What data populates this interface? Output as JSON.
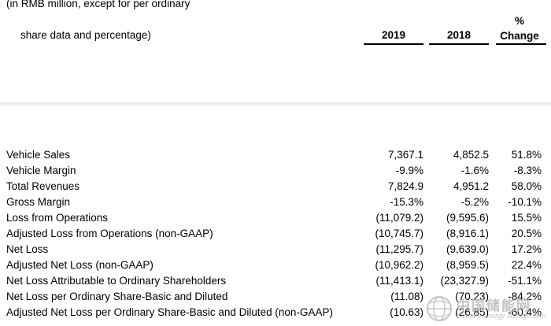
{
  "header": {
    "line1": "(in RMB million, except for per ordinary",
    "line2": "share data and percentage)",
    "col_2019": "2019",
    "col_2018": "2018",
    "col_pct_line1": "%",
    "col_pct_line2": "Change"
  },
  "rows": [
    {
      "label": "Vehicle Sales",
      "v2019": "7,367.1",
      "v2018": "4,852.5",
      "pct": "51.8%"
    },
    {
      "label": "Vehicle Margin",
      "v2019": "-9.9%",
      "v2018": "-1.6%",
      "pct": "-8.3%"
    },
    {
      "label": "Total Revenues",
      "v2019": "7,824.9",
      "v2018": "4,951.2",
      "pct": "58.0%"
    },
    {
      "label": "Gross Margin",
      "v2019": "-15.3%",
      "v2018": "-5.2%",
      "pct": "-10.1%"
    },
    {
      "label": "Loss from Operations",
      "v2019": "(11,079.2)",
      "v2018": "(9,595.6)",
      "pct": "15.5%"
    },
    {
      "label": "Adjusted Loss from Operations (non-GAAP)",
      "v2019": "(10,745.7)",
      "v2018": "(8,916.1)",
      "pct": "20.5%"
    },
    {
      "label": "Net Loss",
      "v2019": "(11,295.7)",
      "v2018": "(9,639.0)",
      "pct": "17.2%"
    },
    {
      "label": "Adjusted Net Loss (non-GAAP)",
      "v2019": "(10,962.2)",
      "v2018": "(8,959.5)",
      "pct": "22.4%"
    },
    {
      "label": "Net Loss Attributable to Ordinary Shareholders",
      "v2019": "(11,413.1)",
      "v2018": "(23,327.9)",
      "pct": "-51.1%"
    },
    {
      "label": "Net Loss per Ordinary Share-Basic and Diluted",
      "v2019": "(11.08)",
      "v2018": "(70.23)",
      "pct": "-84.2%"
    },
    {
      "label": "Adjusted Net Loss per Ordinary Share-Basic and Diluted (non-GAAP)",
      "v2019": "(10.63)",
      "v2018": "(26.85)",
      "pct": "-60.4%"
    }
  ],
  "watermark": {
    "text_cn": "中国储能网",
    "text_en": "Century energy storage.com",
    "icon": "globe-logo-icon"
  }
}
